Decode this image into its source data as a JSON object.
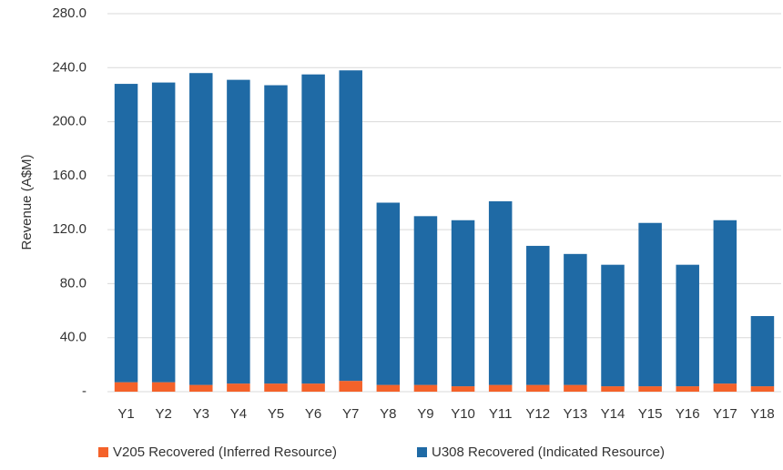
{
  "chart_data": {
    "type": "stacked_bar",
    "y_label": "Revenue (A$M)",
    "categories": [
      "Y1",
      "Y2",
      "Y3",
      "Y4",
      "Y5",
      "Y6",
      "Y7",
      "Y8",
      "Y9",
      "Y10",
      "Y11",
      "Y12",
      "Y13",
      "Y14",
      "Y15",
      "Y16",
      "Y17",
      "Y18"
    ],
    "series": [
      {
        "name": "V205 Recovered (Inferred Resource)",
        "color": "#f4622a",
        "values": [
          7,
          7,
          5,
          6,
          6,
          6,
          8,
          5,
          5,
          4,
          5,
          5,
          5,
          4,
          4,
          4,
          6,
          4
        ]
      },
      {
        "name": "U308 Recovered (Indicated Resource)",
        "color": "#1f6aa5",
        "values": [
          221,
          222,
          231,
          225,
          221,
          229,
          230,
          135,
          125,
          123,
          136,
          103,
          97,
          90,
          121,
          90,
          121,
          52
        ]
      }
    ],
    "ylim": [
      0,
      280
    ],
    "yticks": [
      {
        "value": 0,
        "label": "-"
      },
      {
        "value": 40,
        "label": "40.0"
      },
      {
        "value": 80,
        "label": "80.0"
      },
      {
        "value": 120,
        "label": "120.0"
      },
      {
        "value": 160,
        "label": "160.0"
      },
      {
        "value": 200,
        "label": "200.0"
      },
      {
        "value": 240,
        "label": "240.0"
      },
      {
        "value": 280,
        "label": "280.0"
      }
    ],
    "grid": true,
    "legend": "bottom"
  }
}
